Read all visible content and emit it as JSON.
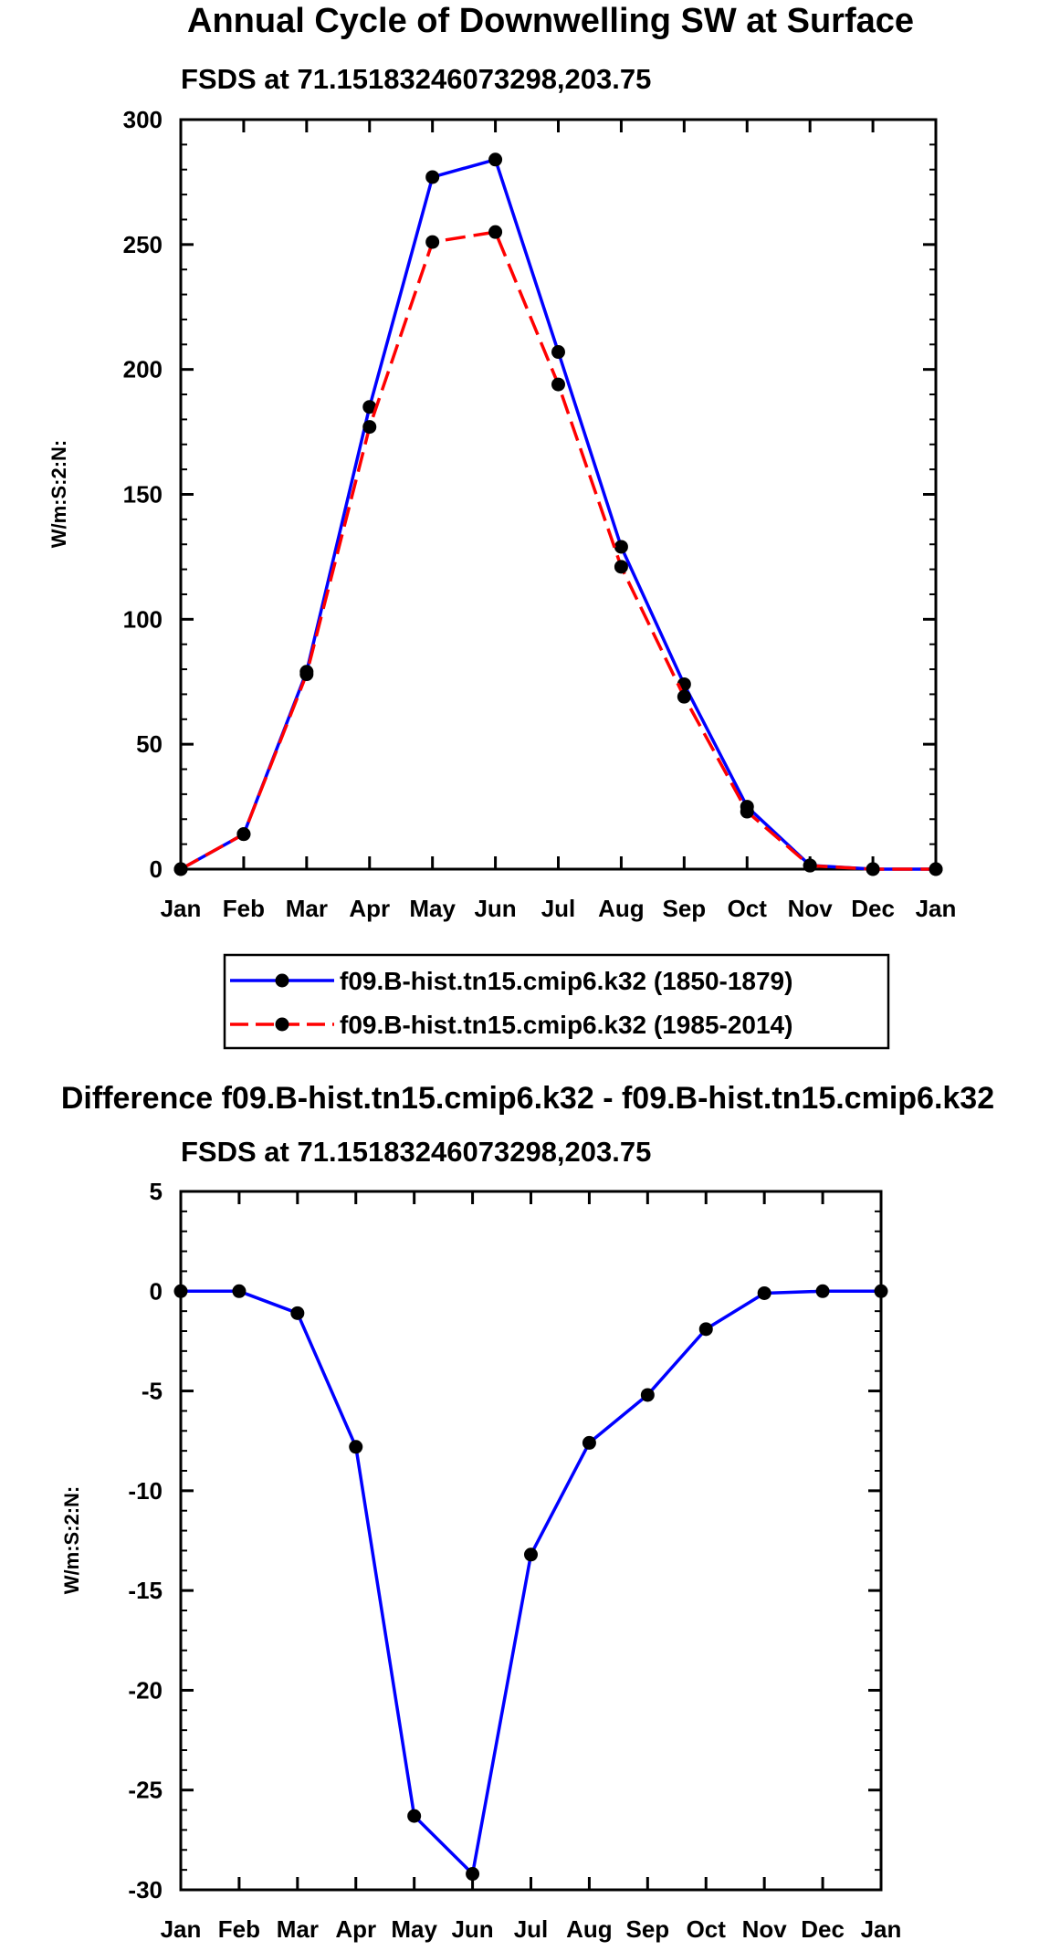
{
  "chart_data": [
    {
      "type": "line",
      "title": "Annual Cycle of Downwelling SW at Surface",
      "subtitle": "FSDS at 71.15183246073298,203.75",
      "ylabel": "W/m:S:2:N:",
      "xlabel": "",
      "categories": [
        "Jan",
        "Feb",
        "Mar",
        "Apr",
        "May",
        "Jun",
        "Jul",
        "Aug",
        "Sep",
        "Oct",
        "Nov",
        "Dec",
        "Jan"
      ],
      "ylim": [
        0,
        300
      ],
      "yticks": [
        0,
        50,
        100,
        150,
        200,
        250,
        300
      ],
      "series": [
        {
          "name": "f09.B-hist.tn15.cmip6.k32 (1850-1879)",
          "color": "#0000ff",
          "dash": "solid",
          "values": [
            0,
            14,
            79,
            185,
            277,
            284,
            207,
            129,
            74,
            25,
            1.5,
            0,
            0
          ]
        },
        {
          "name": "f09.B-hist.tn15.cmip6.k32 (1985-2014)",
          "color": "#ff0000",
          "dash": "dashed",
          "values": [
            0,
            14,
            78,
            177,
            251,
            255,
            194,
            121,
            69,
            23,
            1.4,
            0,
            0
          ]
        }
      ],
      "legend": "below"
    },
    {
      "type": "line",
      "title": "Difference f09.B-hist.tn15.cmip6.k32 - f09.B-hist.tn15.cmip6.k32",
      "subtitle": "FSDS at 71.15183246073298,203.75",
      "ylabel": "W/m:S:2:N:",
      "xlabel": "",
      "categories": [
        "Jan",
        "Feb",
        "Mar",
        "Apr",
        "May",
        "Jun",
        "Jul",
        "Aug",
        "Sep",
        "Oct",
        "Nov",
        "Dec",
        "Jan"
      ],
      "ylim": [
        -30,
        5
      ],
      "yticks": [
        -30,
        -25,
        -20,
        -15,
        -10,
        -5,
        0,
        5
      ],
      "series": [
        {
          "name": "Difference",
          "color": "#0000ff",
          "dash": "solid",
          "values": [
            0,
            0,
            -1.1,
            -7.8,
            -26.3,
            -29.2,
            -13.2,
            -7.6,
            -5.2,
            -1.9,
            -0.1,
            0,
            0
          ]
        }
      ]
    }
  ]
}
